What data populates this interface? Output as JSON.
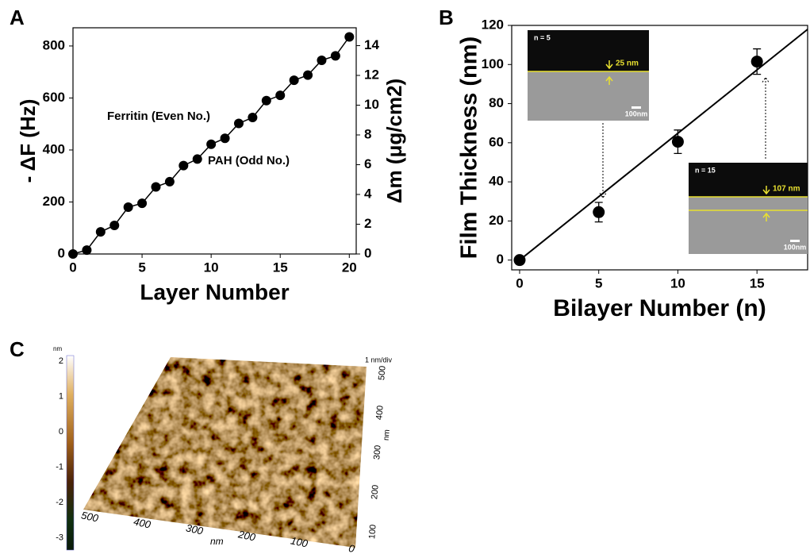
{
  "chart_data": [
    {
      "type": "line",
      "panel_label": "A",
      "xlabel": "Layer Number",
      "ylabel": "- ΔF (Hz)",
      "y2label": "Δm (μg/cm2)",
      "x": [
        0,
        1,
        2,
        3,
        4,
        5,
        6,
        7,
        8,
        9,
        10,
        11,
        12,
        13,
        14,
        15,
        16,
        17,
        18,
        19,
        20
      ],
      "values": [
        0,
        15,
        85,
        110,
        180,
        195,
        258,
        278,
        340,
        365,
        422,
        445,
        502,
        525,
        590,
        610,
        668,
        688,
        745,
        762,
        835
      ],
      "color": "#000000",
      "xlim": [
        0,
        20.5
      ],
      "xticks": [
        0,
        5,
        10,
        15,
        20
      ],
      "ylim": [
        0,
        870
      ],
      "yticks": [
        0,
        200,
        400,
        600,
        800
      ],
      "y2lim": [
        0,
        15.2
      ],
      "y2ticks": [
        0,
        2,
        4,
        6,
        8,
        10,
        12,
        14
      ],
      "annotations": [
        "Ferritin (Even No.)",
        "PAH (Odd No.)"
      ]
    },
    {
      "type": "scatter",
      "panel_label": "B",
      "xlabel": "Bilayer Number (n)",
      "ylabel": "Film Thickness (nm)",
      "x": [
        0,
        5,
        10,
        15
      ],
      "values": [
        0,
        24.5,
        60.5,
        101.5
      ],
      "errors": [
        0,
        5,
        6,
        6.5
      ],
      "color": "#000000",
      "fit_line": {
        "x": [
          0,
          18.2
        ],
        "values": [
          0,
          118
        ]
      },
      "xlim": [
        -0.5,
        18.2
      ],
      "xticks": [
        0,
        5,
        10,
        15
      ],
      "ylim": [
        -5,
        120
      ],
      "yticks": [
        0,
        20,
        40,
        60,
        80,
        100,
        120
      ],
      "insets": [
        {
          "label": "n = 5",
          "thickness": "25 nm",
          "scale": "100nm"
        },
        {
          "label": "n = 15",
          "thickness": "107 nm",
          "scale": "100nm"
        }
      ]
    }
  ],
  "afm_panel": {
    "panel_label": "C",
    "colorbar_unit": "nm",
    "colorbar_ticks": [
      2,
      1,
      0,
      -1,
      -2,
      -3
    ],
    "x_ticks": [
      500,
      400,
      300,
      200,
      100,
      0
    ],
    "x_unit": "nm",
    "z_scale": "1 nm/div",
    "y_ticks": [
      500,
      400,
      300,
      200,
      100
    ],
    "y_unit": "nm"
  }
}
